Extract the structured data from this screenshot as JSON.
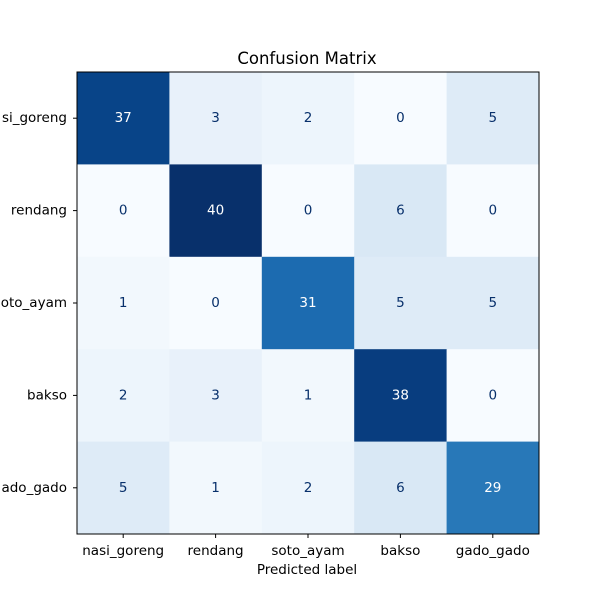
{
  "chart_data": {
    "type": "heatmap",
    "title": "Confusion Matrix",
    "xlabel": "Predicted label",
    "ylabel": "",
    "x_categories": [
      "nasi_goreng",
      "rendang",
      "soto_ayam",
      "bakso",
      "gado_gado"
    ],
    "y_categories": [
      "nasi_goreng",
      "rendang",
      "soto_ayam",
      "bakso",
      "gado_gado"
    ],
    "y_tick_labels_visible": [
      "si_goreng",
      "rendang",
      "oto_ayam",
      "bakso",
      "ado_gado"
    ],
    "matrix": [
      [
        37,
        3,
        2,
        0,
        5
      ],
      [
        0,
        40,
        0,
        6,
        0
      ],
      [
        1,
        0,
        31,
        5,
        5
      ],
      [
        2,
        3,
        1,
        38,
        0
      ],
      [
        5,
        1,
        2,
        6,
        29
      ]
    ],
    "value_range": [
      0,
      40
    ],
    "colormap": "Blues",
    "colors": {
      "light_text": "#ffffff",
      "dark_text": "#08306b",
      "border": "#000000"
    },
    "grid": false,
    "legend": false
  }
}
